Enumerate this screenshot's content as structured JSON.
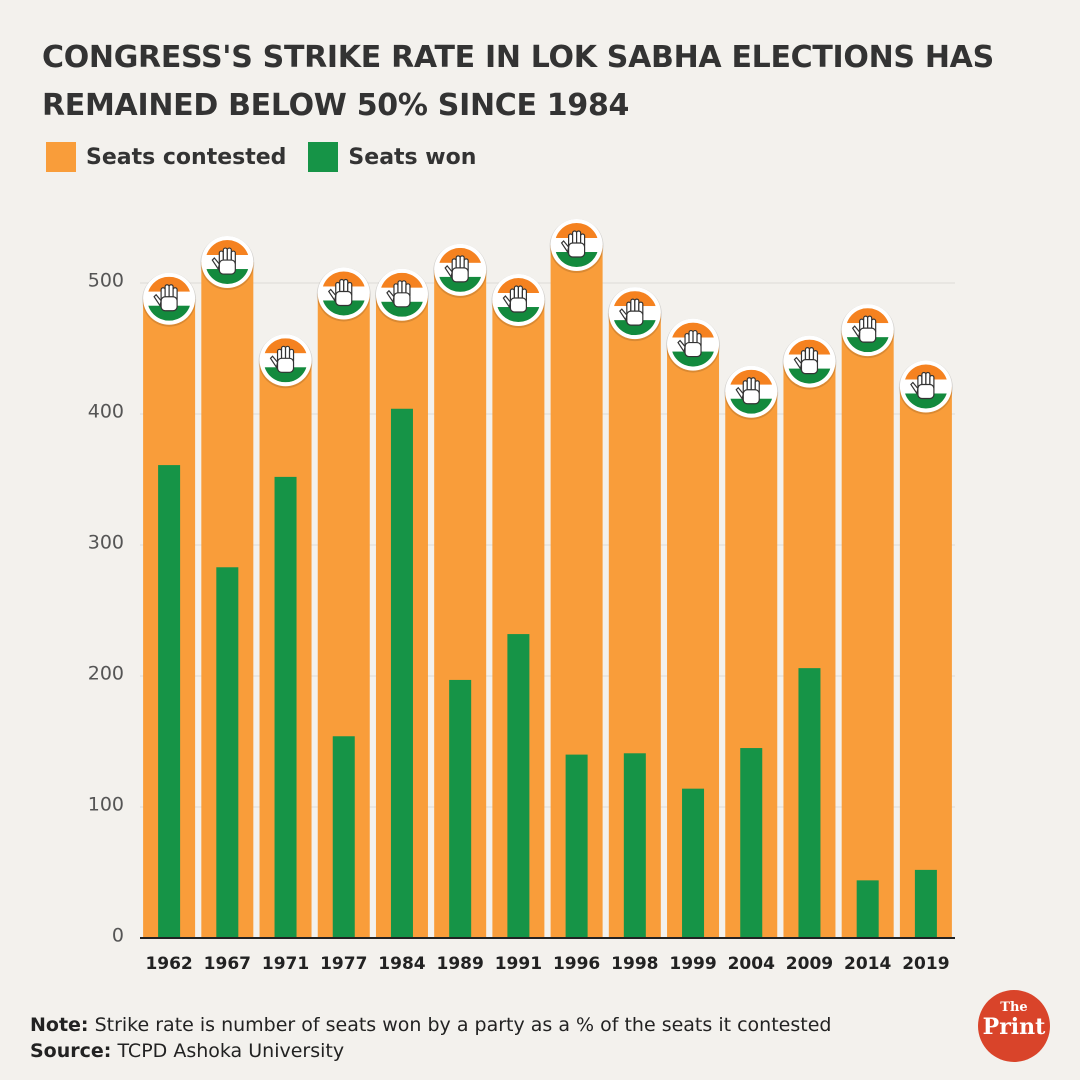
{
  "chart_data": {
    "type": "bar",
    "title": "CONGRESS'S STRIKE RATE IN LOK SABHA ELECTIONS HAS REMAINED BELOW 50% SINCE 1984",
    "categories": [
      "1962",
      "1967",
      "1971",
      "1977",
      "1984",
      "1989",
      "1991",
      "1996",
      "1998",
      "1999",
      "2004",
      "2009",
      "2014",
      "2019"
    ],
    "series": [
      {
        "name": "Seats contested",
        "color": "#f99d3a",
        "values": [
          488,
          516,
          441,
          492,
          491,
          510,
          487,
          529,
          477,
          453,
          417,
          440,
          464,
          421
        ]
      },
      {
        "name": "Seats won",
        "color": "#169447",
        "values": [
          361,
          283,
          352,
          154,
          404,
          197,
          232,
          140,
          141,
          114,
          145,
          206,
          44,
          52
        ]
      }
    ],
    "ylim": [
      0,
      500
    ],
    "yticks": [
      0,
      100,
      200,
      300,
      400,
      500
    ],
    "grid": true,
    "note": {
      "label": "Note:",
      "text": "Strike rate is number of seats won by a party as a % of the seats it contested"
    },
    "source": {
      "label": "Source:",
      "text": "TCPD Ashoka University"
    }
  },
  "logo": {
    "top": "The",
    "bottom": "Print"
  }
}
